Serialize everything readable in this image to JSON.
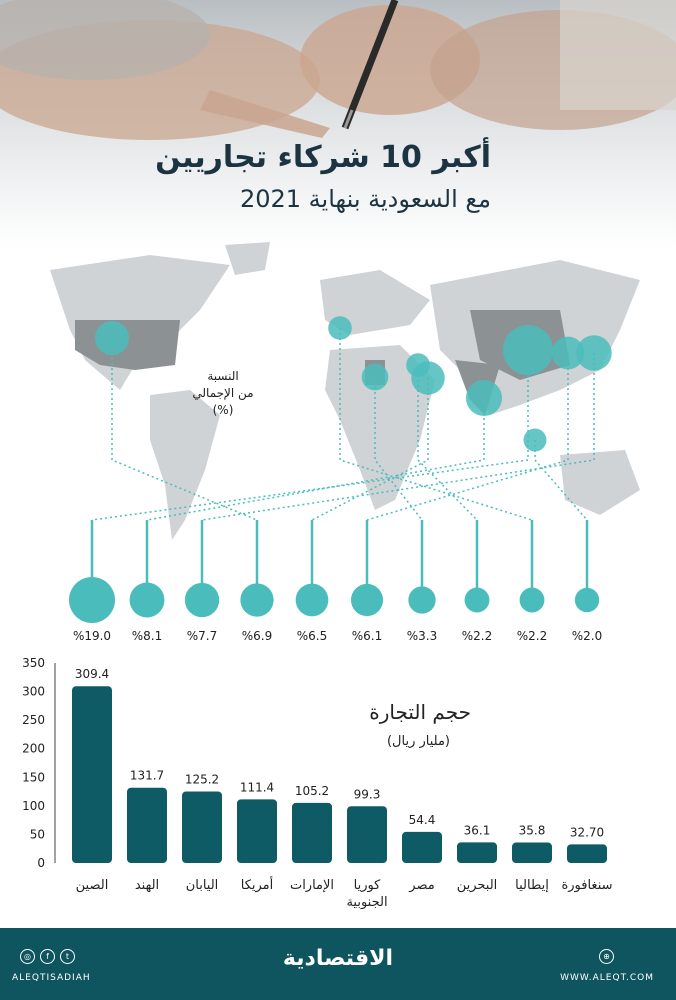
{
  "header": {
    "title": "أكبر 10 شركاء تجاريين",
    "subtitle": "مع السعودية بنهاية 2021"
  },
  "map": {
    "share_note_line1": "النسبة",
    "share_note_line2": "من الإجمالي",
    "share_note_line3": "(%)"
  },
  "volume": {
    "title": "حجم التجارة",
    "unit": "(مليار ريال)"
  },
  "chart_data": {
    "type": "bar",
    "categories": [
      "الصين",
      "الهند",
      "اليابان",
      "أمريكا",
      "الإمارات",
      "كوريا الجنوبية",
      "مصر",
      "البحرين",
      "إيطاليا",
      "سنغافورة"
    ],
    "values": [
      309.4,
      131.7,
      125.2,
      111.4,
      105.2,
      99.3,
      54.4,
      36.1,
      35.8,
      32.7
    ],
    "value_labels": [
      "309.4",
      "131.7",
      "125.2",
      "111.4",
      "105.2",
      "99.3",
      "54.4",
      "36.1",
      "35.8",
      "32.70"
    ],
    "share_values": [
      19.0,
      8.1,
      7.7,
      6.9,
      6.5,
      6.1,
      3.3,
      2.2,
      2.2,
      2.0
    ],
    "share_labels": [
      "%19.0",
      "%8.1",
      "%7.7",
      "%6.9",
      "%6.5",
      "%6.1",
      "%3.3",
      "%2.2",
      "%2.2",
      "%2.0"
    ],
    "ylim": [
      0,
      350
    ],
    "yticks": [
      0,
      50,
      100,
      150,
      200,
      250,
      300,
      350
    ],
    "colors": {
      "bar": "#0e5b66",
      "bubble": "#4bbcbc"
    }
  },
  "footer": {
    "brand": "الاقتصادية",
    "handle": "ALEQTISADIAH",
    "site": "WWW.ALEQT.COM",
    "social_icons": [
      "instagram-icon",
      "facebook-icon",
      "twitter-icon"
    ]
  }
}
